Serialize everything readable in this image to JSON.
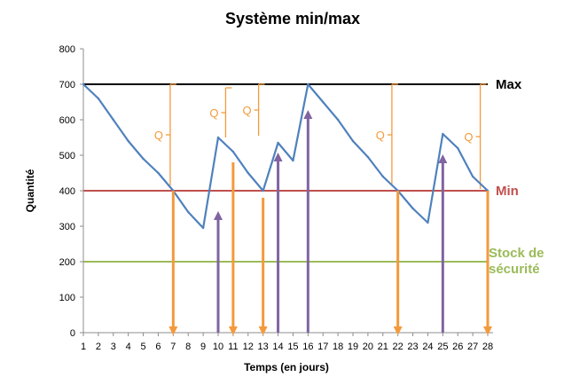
{
  "chart_data": {
    "type": "line",
    "title": "Système min/max",
    "xlabel": "Temps (en jours)",
    "ylabel": "Quantité",
    "xlim": [
      1,
      28
    ],
    "ylim": [
      0,
      800
    ],
    "y_ticks": [
      0,
      100,
      200,
      300,
      400,
      500,
      600,
      700,
      800
    ],
    "x_ticks": [
      1,
      2,
      3,
      4,
      5,
      6,
      7,
      8,
      9,
      10,
      11,
      12,
      13,
      14,
      15,
      16,
      17,
      18,
      19,
      20,
      21,
      22,
      23,
      24,
      25,
      26,
      27,
      28
    ],
    "grid": false,
    "series": [
      {
        "name": "",
        "color": "#4f81bd",
        "x": [
          1,
          2,
          3,
          4,
          5,
          6,
          7,
          8,
          9,
          10,
          11,
          12,
          13,
          14,
          15,
          16,
          17,
          18,
          19,
          20,
          21,
          22,
          23,
          24,
          25,
          26,
          27,
          28
        ],
        "y": [
          700,
          660,
          600,
          540,
          490,
          450,
          400,
          340,
          295,
          550,
          510,
          450,
          400,
          535,
          485,
          700,
          650,
          600,
          540,
          495,
          440,
          400,
          350,
          310,
          560,
          520,
          440,
          400
        ]
      }
    ],
    "reference_lines": [
      {
        "name": "Max",
        "value": 700,
        "color": "#000000",
        "label_color": "#000000"
      },
      {
        "name": "Min",
        "value": 400,
        "color": "#c0504d",
        "label_color": "#c0504d"
      },
      {
        "name": "Stock de sécurité",
        "lines": [
          "Stock de",
          "sécurité"
        ],
        "value": 200,
        "color": "#9bbb59",
        "label_color": "#9bbb59"
      }
    ],
    "order_arrows": {
      "color": "#f39a3c",
      "points": [
        {
          "x": 7,
          "from": 400,
          "to": 5
        },
        {
          "x": 11,
          "from": 480,
          "to": 5
        },
        {
          "x": 13,
          "from": 380,
          "to": 5
        },
        {
          "x": 22,
          "from": 400,
          "to": 5
        },
        {
          "x": 28,
          "from": 400,
          "to": 5
        }
      ]
    },
    "delivery_arrows": {
      "color": "#8064a2",
      "points": [
        {
          "x": 10,
          "from": 0,
          "to": 330
        },
        {
          "x": 14,
          "from": 0,
          "to": 495
        },
        {
          "x": 16,
          "from": 0,
          "to": 615
        },
        {
          "x": 25,
          "from": 0,
          "to": 490
        }
      ]
    },
    "q_brackets": {
      "color": "#f39a3c",
      "label": "Q",
      "items": [
        {
          "x": 6.8,
          "top": 700,
          "bottom": 415
        },
        {
          "x": 10.5,
          "top": 690,
          "bottom": 550
        },
        {
          "x": 12.7,
          "top": 700,
          "bottom": 555
        },
        {
          "x": 21.6,
          "top": 700,
          "bottom": 415
        },
        {
          "x": 27.5,
          "top": 700,
          "bottom": 405
        }
      ]
    }
  }
}
